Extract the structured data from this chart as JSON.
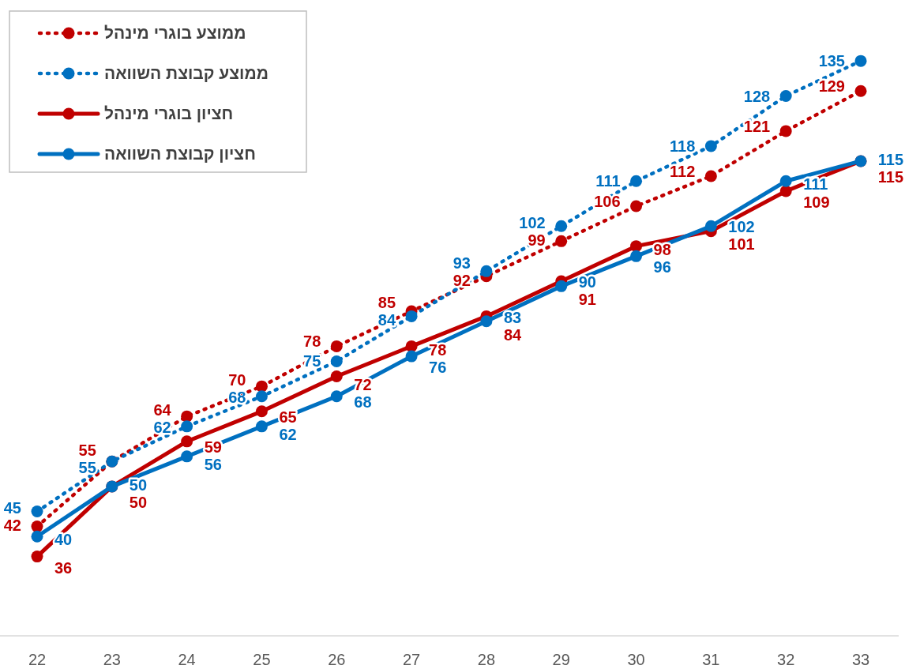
{
  "chart_data": {
    "type": "line",
    "categories": [
      "22",
      "23",
      "24",
      "25",
      "26",
      "27",
      "28",
      "29",
      "30",
      "31",
      "32",
      "33"
    ],
    "series": [
      {
        "name": "ממוצע בוגרי מינהל",
        "color": "#c00000",
        "line_style": "dotted",
        "values": [
          42,
          55,
          64,
          70,
          78,
          85,
          92,
          99,
          106,
          112,
          121,
          129
        ]
      },
      {
        "name": "ממוצע קבוצת השוואה",
        "color": "#0070c0",
        "line_style": "dotted",
        "values": [
          45,
          55,
          62,
          68,
          75,
          84,
          93,
          102,
          111,
          118,
          128,
          135
        ]
      },
      {
        "name": "חציון בוגרי מינהל",
        "color": "#c00000",
        "line_style": "solid",
        "values": [
          36,
          50,
          59,
          65,
          72,
          78,
          84,
          91,
          98,
          101,
          109,
          115
        ]
      },
      {
        "name": "חציון קבוצת השוואה",
        "color": "#0070c0",
        "line_style": "solid",
        "values": [
          40,
          50,
          56,
          62,
          68,
          76,
          83,
          90,
          96,
          102,
          111,
          115
        ]
      }
    ],
    "marker": "circle",
    "data_labels": true,
    "legend": "top left"
  }
}
